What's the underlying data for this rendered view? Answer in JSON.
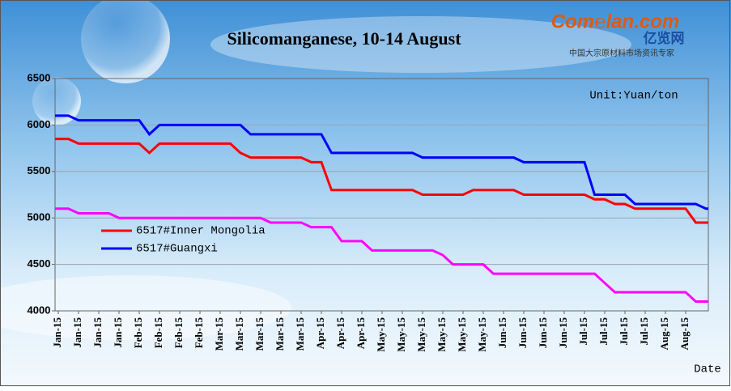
{
  "logo": {
    "brand": "Com℮lan.com",
    "cn_name": "亿览网",
    "slogan": "中国大宗原材料市场资讯专家"
  },
  "chart_data": {
    "type": "line",
    "title": "Silicomanganese, 10-14 August",
    "unit": "Unit:Yuan/ton",
    "x_label": "Date",
    "categories": [
      "Jan-15",
      null,
      "Jan-15",
      null,
      "Jan-15",
      null,
      "Jan-15",
      null,
      "Feb-15",
      null,
      "Feb-15",
      null,
      "Feb-15",
      null,
      "Feb-15",
      null,
      "Mar-15",
      null,
      "Mar-15",
      null,
      "Mar-15",
      null,
      "Mar-15",
      null,
      "Mar-15",
      null,
      "Apr-15",
      null,
      "Apr-15",
      null,
      "Apr-15",
      null,
      "May-15",
      null,
      "May-15",
      null,
      "May-15",
      null,
      "May-15",
      null,
      "May-15",
      null,
      "May-15",
      null,
      "Jun-15",
      null,
      "Jun-15",
      null,
      "Jun-15",
      null,
      "Jun-15",
      null,
      "Jul-15",
      null,
      "Jul-15",
      null,
      "Jul-15",
      null,
      "Jul-15",
      null,
      "Aug-15",
      null,
      "Aug-15",
      null,
      null
    ],
    "series": [
      {
        "name": "6517#Inner Mongolia",
        "color": "#ff0000",
        "values": [
          5850,
          5850,
          5800,
          5800,
          5800,
          5800,
          5800,
          5800,
          5800,
          5700,
          5800,
          5800,
          5800,
          5800,
          5800,
          5800,
          5800,
          5800,
          5700,
          5650,
          5650,
          5650,
          5650,
          5650,
          5650,
          5600,
          5600,
          5300,
          5300,
          5300,
          5300,
          5300,
          5300,
          5300,
          5300,
          5300,
          5250,
          5250,
          5250,
          5250,
          5250,
          5300,
          5300,
          5300,
          5300,
          5300,
          5250,
          5250,
          5250,
          5250,
          5250,
          5250,
          5250,
          5200,
          5200,
          5150,
          5150,
          5100,
          5100,
          5100,
          5100,
          5100,
          5100,
          4950,
          4950
        ]
      },
      {
        "name": "6517#Guangxi",
        "color": "#0000ff",
        "values": [
          6100,
          6100,
          6050,
          6050,
          6050,
          6050,
          6050,
          6050,
          6050,
          5900,
          6000,
          6000,
          6000,
          6000,
          6000,
          6000,
          6000,
          6000,
          6000,
          5900,
          5900,
          5900,
          5900,
          5900,
          5900,
          5900,
          5900,
          5700,
          5700,
          5700,
          5700,
          5700,
          5700,
          5700,
          5700,
          5700,
          5650,
          5650,
          5650,
          5650,
          5650,
          5650,
          5650,
          5650,
          5650,
          5650,
          5600,
          5600,
          5600,
          5600,
          5600,
          5600,
          5600,
          5250,
          5250,
          5250,
          5250,
          5150,
          5150,
          5150,
          5150,
          5150,
          5150,
          5150,
          5100
        ]
      },
      {
        "color": "#ff00ff",
        "values": [
          5100,
          5100,
          5050,
          5050,
          5050,
          5050,
          5000,
          5000,
          5000,
          5000,
          5000,
          5000,
          5000,
          5000,
          5000,
          5000,
          5000,
          5000,
          5000,
          5000,
          5000,
          4950,
          4950,
          4950,
          4950,
          4900,
          4900,
          4900,
          4750,
          4750,
          4750,
          4650,
          4650,
          4650,
          4650,
          4650,
          4650,
          4650,
          4600,
          4500,
          4500,
          4500,
          4500,
          4400,
          4400,
          4400,
          4400,
          4400,
          4400,
          4400,
          4400,
          4400,
          4400,
          4400,
          4300,
          4200,
          4200,
          4200,
          4200,
          4200,
          4200,
          4200,
          4200,
          4100,
          4100
        ]
      }
    ],
    "ylim": [
      4000,
      6500
    ],
    "yticks": [
      4000,
      4500,
      5000,
      5500,
      6000,
      6500
    ],
    "grid": true
  }
}
